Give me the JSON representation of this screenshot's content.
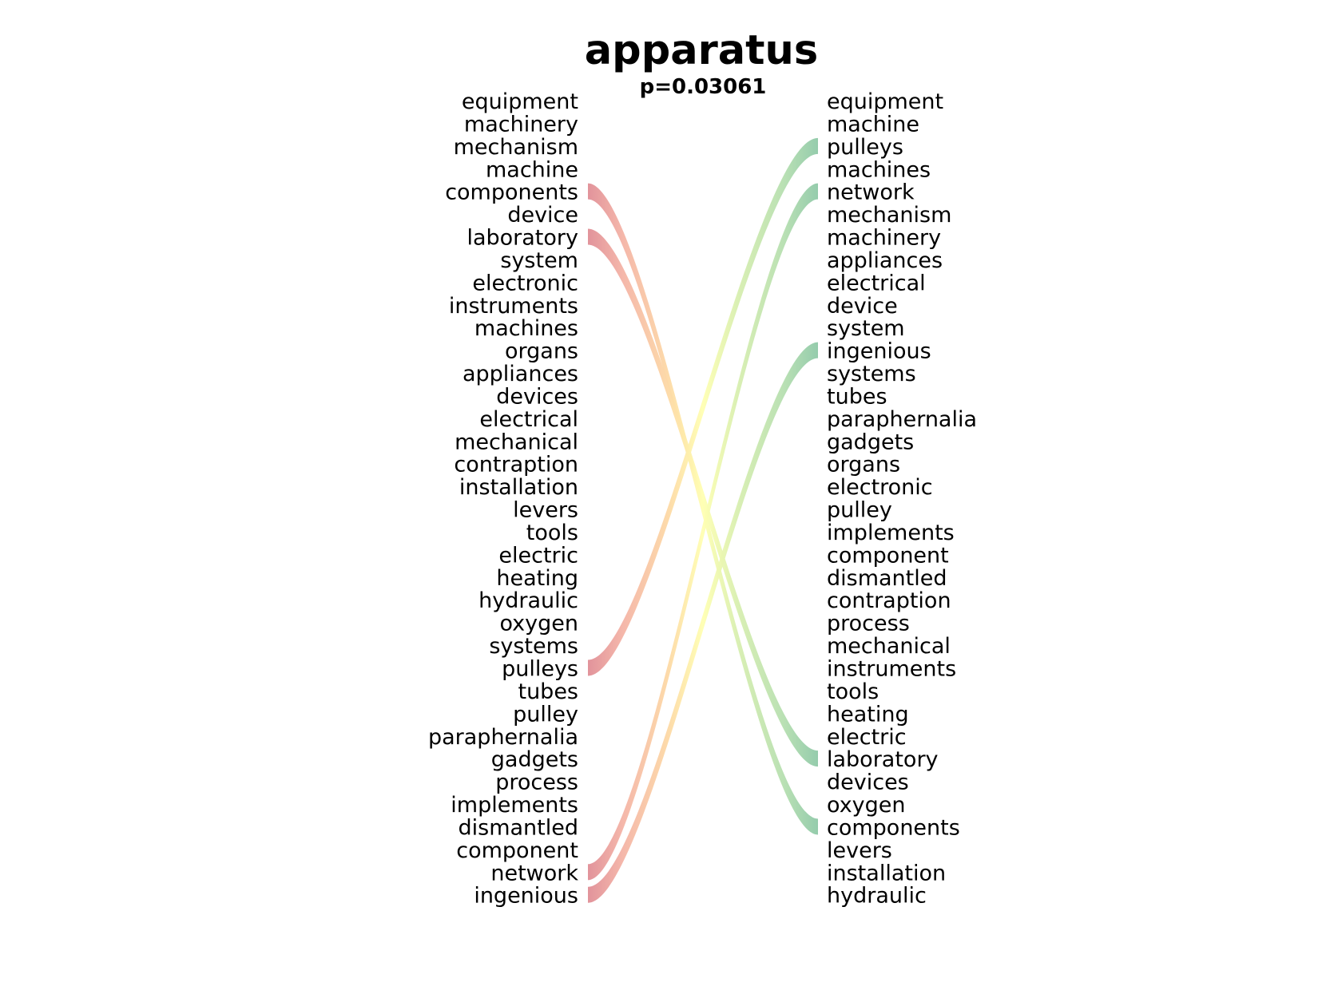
{
  "chart_data": {
    "type": "bump",
    "title": "apparatus",
    "subtitle": "p=0.03061",
    "left_ranking": [
      "equipment",
      "machinery",
      "mechanism",
      "machine",
      "components",
      "device",
      "laboratory",
      "system",
      "electronic",
      "instruments",
      "machines",
      "organs",
      "appliances",
      "devices",
      "electrical",
      "mechanical",
      "contraption",
      "installation",
      "levers",
      "tools",
      "electric",
      "heating",
      "hydraulic",
      "oxygen",
      "systems",
      "pulleys",
      "tubes",
      "pulley",
      "paraphernalia",
      "gadgets",
      "process",
      "implements",
      "dismantled",
      "component",
      "network",
      "ingenious"
    ],
    "right_ranking": [
      "equipment",
      "machine",
      "pulleys",
      "machines",
      "network",
      "mechanism",
      "machinery",
      "appliances",
      "electrical",
      "device",
      "system",
      "ingenious",
      "systems",
      "tubes",
      "paraphernalia",
      "gadgets",
      "organs",
      "electronic",
      "pulley",
      "implements",
      "component",
      "dismantled",
      "contraption",
      "process",
      "mechanical",
      "instruments",
      "tools",
      "heating",
      "electric",
      "laboratory",
      "devices",
      "oxygen",
      "components",
      "levers",
      "installation",
      "hydraulic"
    ],
    "highlighted_links": [
      {
        "word": "components",
        "from_rank": 5,
        "to_rank": 33
      },
      {
        "word": "laboratory",
        "from_rank": 7,
        "to_rank": 30
      },
      {
        "word": "pulleys",
        "from_rank": 26,
        "to_rank": 3
      },
      {
        "word": "network",
        "from_rank": 35,
        "to_rank": 5
      },
      {
        "word": "ingenious",
        "from_rank": 36,
        "to_rank": 12
      }
    ],
    "colors": {
      "left_end": "#e08e96",
      "mid": "#ffffb2",
      "right_end": "#8fc9a8",
      "left_mid": "#fdc9a3",
      "right_mid": "#d8efb0"
    }
  }
}
